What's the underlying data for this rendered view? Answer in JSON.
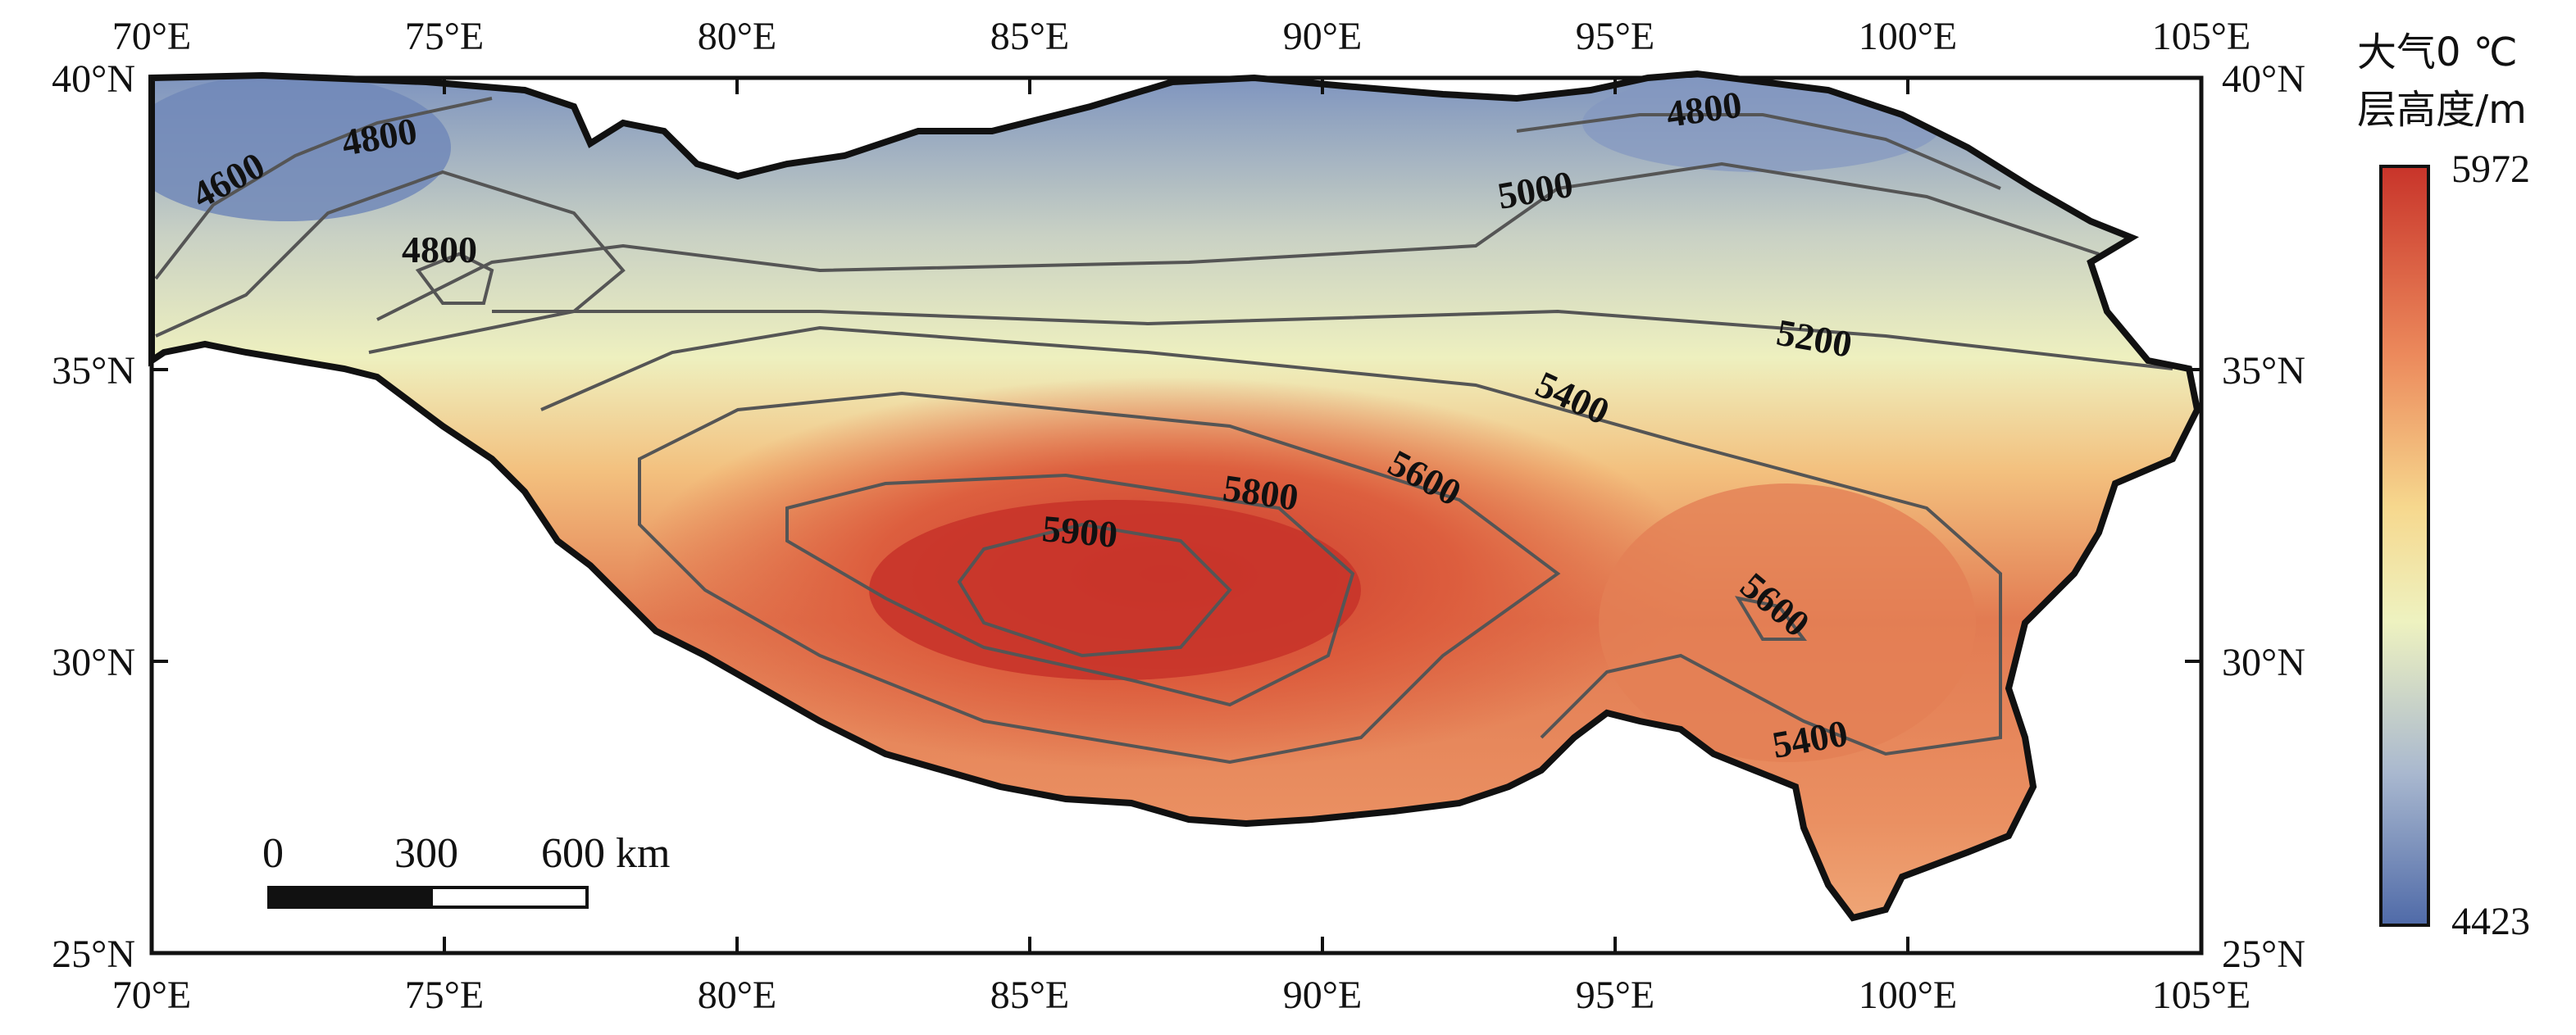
{
  "map": {
    "x_ticks": [
      "70°E",
      "75°E",
      "80°E",
      "85°E",
      "90°E",
      "95°E",
      "100°E",
      "105°E"
    ],
    "y_ticks": [
      "40°N",
      "35°N",
      "30°N",
      "25°N"
    ],
    "contour_labels": [
      "4600",
      "4800",
      "4800",
      "4800",
      "5000",
      "5200",
      "5400",
      "5600",
      "5800",
      "5900",
      "5600",
      "5400"
    ],
    "colors": {
      "high": "#c8342a",
      "mid": "#f3ecb0",
      "low": "#4f6aa8",
      "boundary": "#111111",
      "contour": "#555555"
    }
  },
  "legend": {
    "title_line1": "大气0 ℃",
    "title_line2": "层高度/m",
    "max": "5972",
    "min": "4423"
  },
  "scale_bar": {
    "labels": [
      "0",
      "300",
      "600 km"
    ]
  }
}
